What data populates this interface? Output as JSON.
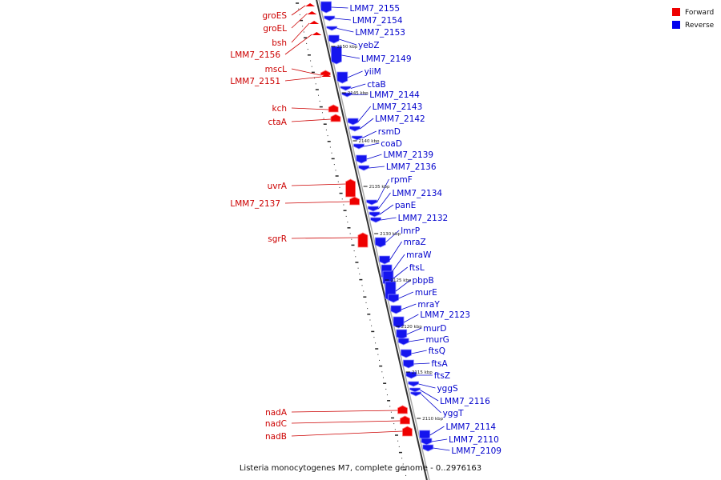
{
  "legend": {
    "items": [
      {
        "label": "Forward",
        "color": "#ee0000"
      },
      {
        "label": "Reverse",
        "color": "#0000ee"
      }
    ]
  },
  "caption": "Listeria monocytogenes M7, complete genome - 0..2976163",
  "colors": {
    "forward_fill": "#ee0000",
    "forward_light": "#ff8080",
    "reverse_fill": "#1515ee",
    "reverse_light": "#8f8fff",
    "backbone": "#888888",
    "forward_label": "#cc0000",
    "reverse_label": "#0000cc"
  },
  "kbp_markers": [
    {
      "kbp": 2150,
      "label": "2150 kbp"
    },
    {
      "kbp": 2145,
      "label": "2145 kbp"
    },
    {
      "kbp": 2140,
      "label": "2140 kbp"
    },
    {
      "kbp": 2135,
      "label": "2135 kbp"
    },
    {
      "kbp": 2130,
      "label": "2130 kbp"
    },
    {
      "kbp": 2125,
      "label": "2125 kbp"
    },
    {
      "kbp": 2120,
      "label": "2120 kbp"
    },
    {
      "kbp": 2115,
      "label": "2115 kbp"
    },
    {
      "kbp": 2110,
      "label": "2110 kbp"
    }
  ],
  "forward_genes": [
    {
      "name": "groES",
      "label": "groES"
    },
    {
      "name": "groEL",
      "label": "groEL"
    },
    {
      "name": "bsh",
      "label": "bsh"
    },
    {
      "name": "LMM7_2156",
      "label": "LMM7_2156"
    },
    {
      "name": "mscL",
      "label": "mscL"
    },
    {
      "name": "LMM7_2151",
      "label": "LMM7_2151"
    },
    {
      "name": "kch",
      "label": "kch"
    },
    {
      "name": "ctaA",
      "label": "ctaA"
    },
    {
      "name": "uvrA",
      "label": "uvrA"
    },
    {
      "name": "LMM7_2137",
      "label": "LMM7_2137"
    },
    {
      "name": "sgrR",
      "label": "sgrR"
    },
    {
      "name": "nadA",
      "label": "nadA"
    },
    {
      "name": "nadC",
      "label": "nadC"
    },
    {
      "name": "nadB",
      "label": "nadB"
    }
  ],
  "reverse_genes": [
    {
      "label": "LMM7_2155"
    },
    {
      "label": "LMM7_2154"
    },
    {
      "label": "LMM7_2153"
    },
    {
      "label": "yebZ"
    },
    {
      "label": "LMM7_2149"
    },
    {
      "label": "yiiM"
    },
    {
      "label": "ctaB"
    },
    {
      "label": "LMM7_2144"
    },
    {
      "label": "LMM7_2143"
    },
    {
      "label": "LMM7_2142"
    },
    {
      "label": "rsmD"
    },
    {
      "label": "coaD"
    },
    {
      "label": "LMM7_2139"
    },
    {
      "label": "LMM7_2136"
    },
    {
      "label": "rpmF"
    },
    {
      "label": "LMM7_2134"
    },
    {
      "label": "panE"
    },
    {
      "label": "LMM7_2132"
    },
    {
      "label": "lmrP"
    },
    {
      "label": "mraZ"
    },
    {
      "label": "mraW"
    },
    {
      "label": "ftsL"
    },
    {
      "label": "pbpB"
    },
    {
      "label": "murE"
    },
    {
      "label": "mraY"
    },
    {
      "label": "LMM7_2123"
    },
    {
      "label": "murD"
    },
    {
      "label": "murG"
    },
    {
      "label": "ftsQ"
    },
    {
      "label": "ftsA"
    },
    {
      "label": "ftsZ"
    },
    {
      "label": "yggS"
    },
    {
      "label": "LMM7_2116"
    },
    {
      "label": "yggT"
    },
    {
      "label": "LMM7_2114"
    },
    {
      "label": "LMM7_2110"
    },
    {
      "label": "LMM7_2109"
    }
  ]
}
